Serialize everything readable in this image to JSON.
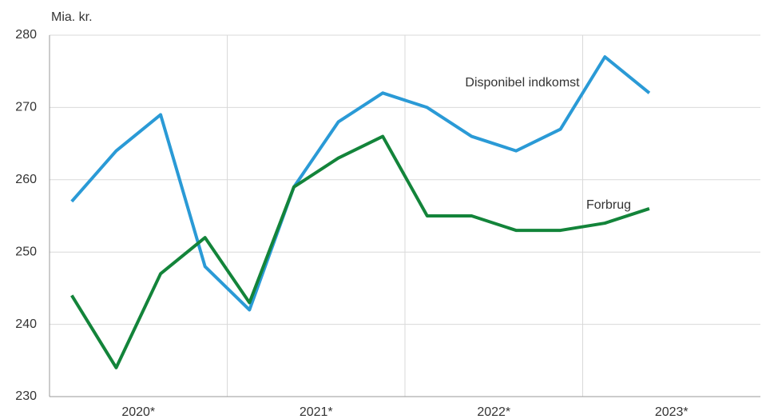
{
  "chart_data": {
    "type": "line",
    "y_label": "Mia. kr.",
    "categories": [
      null,
      null,
      null,
      null,
      null,
      null,
      null,
      null,
      null,
      null,
      null,
      null,
      null,
      null
    ],
    "x_groups": [
      "2020*",
      "2021*",
      "2022*",
      "2023*"
    ],
    "series": [
      {
        "name": "Disponibel indkomst",
        "color": "#2a9ad6",
        "values": [
          257,
          264,
          269,
          248,
          242,
          259,
          268,
          272,
          270,
          266,
          264,
          267,
          277,
          272
        ]
      },
      {
        "name": "Forbrug",
        "color": "#13843a",
        "values": [
          244,
          234,
          247,
          252,
          243,
          259,
          263,
          266,
          255,
          255,
          253,
          253,
          254,
          256
        ]
      }
    ],
    "ylim": [
      230,
      280
    ],
    "yticks": [
      230,
      240,
      250,
      260,
      270,
      280
    ],
    "grid": true
  }
}
